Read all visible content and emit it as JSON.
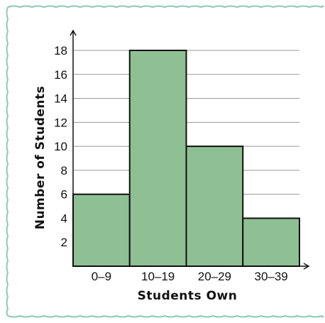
{
  "chart_data": {
    "type": "bar",
    "histogram": true,
    "categories": [
      "0–9",
      "10–19",
      "20–29",
      "30–39"
    ],
    "values": [
      6,
      18,
      10,
      4
    ],
    "title": "",
    "xlabel": "Students Own",
    "ylabel": "Number of Students",
    "ylim": [
      0,
      20
    ],
    "yticks": [
      2,
      4,
      6,
      8,
      10,
      12,
      14,
      16,
      18
    ],
    "grid": true,
    "bar_color": "#8fc093",
    "bar_edge_color": "#111111",
    "grid_color": "#9a9a9a",
    "frame_color": "#8fc8b4"
  }
}
